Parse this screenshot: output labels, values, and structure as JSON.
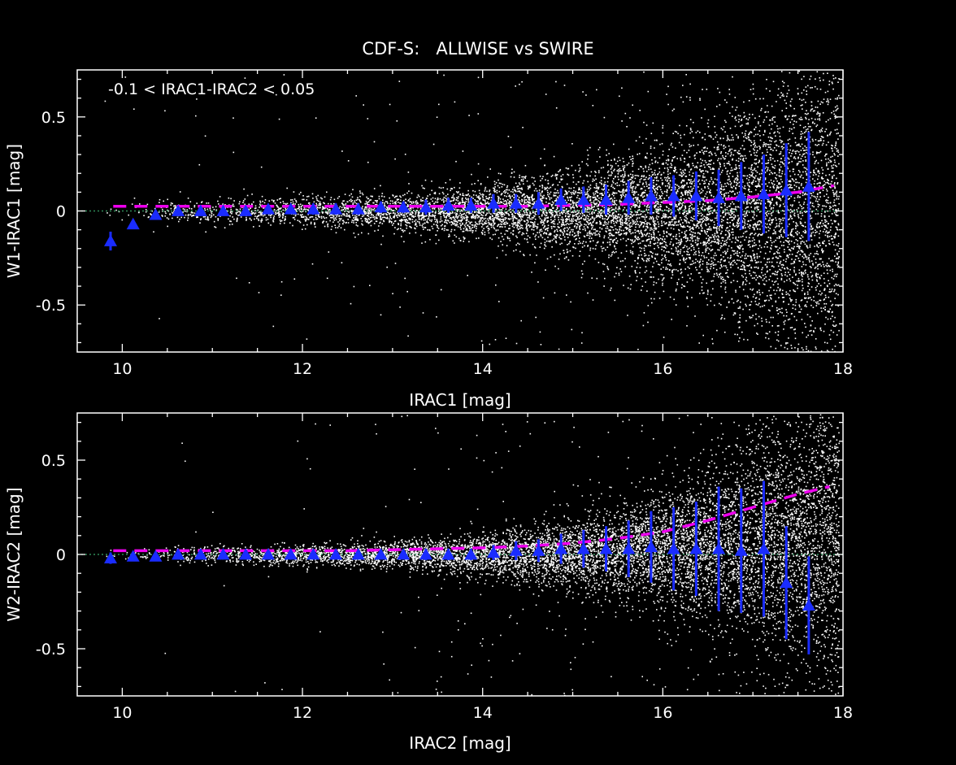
{
  "figure_title": "CDF-S:   ALLWISE vs SWIRE",
  "colors": {
    "background": "#000000",
    "axes": "#ffffff",
    "scatter": "#ffffff",
    "median_marker": "#1a2cff",
    "fit_line": "#ee00ee",
    "zero_line": "#2e8b57"
  },
  "chart_data": [
    {
      "type": "scatter",
      "title": "",
      "annotation": "-0.1 < IRAC1-IRAC2 < 0.05",
      "xlabel": "IRAC1 [mag]",
      "ylabel": "W1-IRAC1 [mag]",
      "xlim": [
        9.5,
        18
      ],
      "ylim": [
        -0.75,
        0.75
      ],
      "xticks": [
        10,
        12,
        14,
        16,
        18
      ],
      "yticks": [
        -0.5,
        0,
        0.5
      ],
      "ytick_labels": [
        "-0.5",
        "0",
        "0.5"
      ],
      "zero_line": 0,
      "grid": false,
      "scatter_description": "dense cloud of individual sources, narrow near 0 at bright magnitudes, widening toward faint magnitudes",
      "medians": {
        "x": [
          9.87,
          10.12,
          10.37,
          10.62,
          10.87,
          11.12,
          11.37,
          11.62,
          11.87,
          12.12,
          12.37,
          12.62,
          12.87,
          13.12,
          13.37,
          13.62,
          13.87,
          14.12,
          14.37,
          14.62,
          14.87,
          15.12,
          15.37,
          15.62,
          15.87,
          16.12,
          16.37,
          16.62,
          16.87,
          17.12,
          17.37,
          17.62
        ],
        "y": [
          -0.16,
          -0.07,
          -0.02,
          0.0,
          0.0,
          0.0,
          0.0,
          0.01,
          0.01,
          0.01,
          0.01,
          0.01,
          0.02,
          0.02,
          0.02,
          0.03,
          0.03,
          0.04,
          0.04,
          0.04,
          0.06,
          0.06,
          0.06,
          0.07,
          0.08,
          0.08,
          0.08,
          0.07,
          0.08,
          0.09,
          0.11,
          0.13
        ],
        "err": [
          0.05,
          0.02,
          0.02,
          0.02,
          0.02,
          0.02,
          0.02,
          0.02,
          0.02,
          0.03,
          0.03,
          0.03,
          0.03,
          0.03,
          0.04,
          0.04,
          0.04,
          0.05,
          0.05,
          0.06,
          0.06,
          0.07,
          0.08,
          0.09,
          0.1,
          0.11,
          0.13,
          0.15,
          0.18,
          0.21,
          0.25,
          0.29
        ]
      },
      "fit": {
        "x": [
          9.9,
          10.5,
          11.0,
          11.5,
          12.0,
          12.5,
          13.0,
          13.5,
          14.0,
          14.5,
          15.0,
          15.5,
          16.0,
          16.5,
          17.0,
          17.5,
          17.9
        ],
        "y": [
          0.025,
          0.025,
          0.025,
          0.025,
          0.025,
          0.025,
          0.025,
          0.025,
          0.025,
          0.025,
          0.03,
          0.035,
          0.045,
          0.055,
          0.075,
          0.1,
          0.135
        ]
      }
    },
    {
      "type": "scatter",
      "title": "",
      "annotation": "",
      "xlabel": "IRAC2 [mag]",
      "ylabel": "W2-IRAC2 [mag]",
      "xlim": [
        9.5,
        18
      ],
      "ylim": [
        -0.75,
        0.75
      ],
      "xticks": [
        10,
        12,
        14,
        16,
        18
      ],
      "yticks": [
        -0.5,
        0,
        0.5
      ],
      "ytick_labels": [
        "-0.5",
        "0",
        "0.5"
      ],
      "zero_line": 0,
      "grid": false,
      "scatter_description": "dense cloud of individual sources, narrow near 0 at bright magnitudes, widening strongly beyond 15.5 mag",
      "medians": {
        "x": [
          9.87,
          10.12,
          10.37,
          10.62,
          10.87,
          11.12,
          11.37,
          11.62,
          11.87,
          12.12,
          12.37,
          12.62,
          12.87,
          13.12,
          13.37,
          13.62,
          13.87,
          14.12,
          14.37,
          14.62,
          14.87,
          15.12,
          15.37,
          15.62,
          15.87,
          16.12,
          16.37,
          16.62,
          16.87,
          17.12,
          17.37,
          17.62
        ],
        "y": [
          -0.02,
          -0.01,
          -0.01,
          0.0,
          0.0,
          0.0,
          0.0,
          0.0,
          0.0,
          0.0,
          0.0,
          0.0,
          0.0,
          0.0,
          0.0,
          0.0,
          0.0,
          0.01,
          0.02,
          0.02,
          0.03,
          0.03,
          0.03,
          0.03,
          0.04,
          0.03,
          0.03,
          0.03,
          0.02,
          0.03,
          -0.15,
          -0.27
        ],
        "err": [
          0.03,
          0.01,
          0.01,
          0.01,
          0.01,
          0.01,
          0.01,
          0.01,
          0.01,
          0.01,
          0.01,
          0.01,
          0.02,
          0.02,
          0.03,
          0.03,
          0.03,
          0.04,
          0.05,
          0.06,
          0.08,
          0.1,
          0.12,
          0.15,
          0.19,
          0.22,
          0.25,
          0.33,
          0.33,
          0.36,
          0.3,
          0.26
        ]
      },
      "fit": {
        "x": [
          9.9,
          10.5,
          11.0,
          11.5,
          12.0,
          12.5,
          13.0,
          13.5,
          14.0,
          14.5,
          15.0,
          15.5,
          16.0,
          16.5,
          17.0,
          17.5,
          17.85
        ],
        "y": [
          0.02,
          0.02,
          0.02,
          0.02,
          0.02,
          0.02,
          0.025,
          0.03,
          0.035,
          0.045,
          0.06,
          0.085,
          0.12,
          0.18,
          0.25,
          0.32,
          0.36
        ]
      }
    }
  ]
}
